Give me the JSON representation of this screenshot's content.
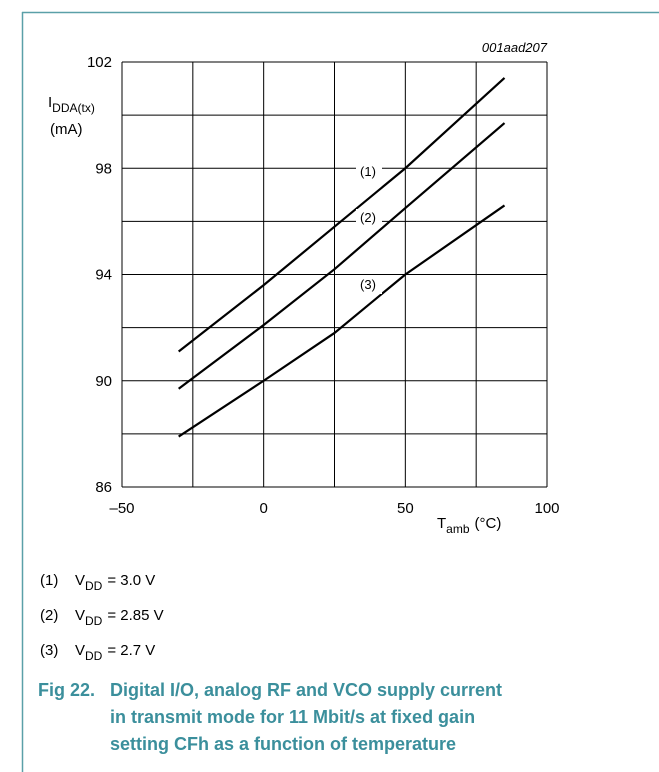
{
  "chart_data": {
    "type": "line",
    "annotation": "001aad207",
    "y_label": {
      "main": "I",
      "sub": "DDA(tx)",
      "unit": "(mA)"
    },
    "x_label": {
      "main": "T",
      "sub": "amb",
      "unit": "(°C)"
    },
    "x": [
      -30,
      0,
      25,
      50,
      85
    ],
    "series": [
      {
        "name": "(1)",
        "color": "#000000",
        "values": [
          91.1,
          93.6,
          95.8,
          98.0,
          101.4
        ]
      },
      {
        "name": "(2)",
        "color": "#000000",
        "values": [
          89.7,
          92.1,
          94.2,
          96.5,
          99.7
        ]
      },
      {
        "name": "(3)",
        "color": "#000000",
        "values": [
          87.9,
          90.0,
          91.8,
          94.0,
          96.6
        ]
      }
    ],
    "xlim": [
      -50,
      100
    ],
    "xticks": [
      {
        "value": -50,
        "label": "–50"
      },
      0,
      50,
      100
    ],
    "xgrid": [
      -50,
      -25,
      0,
      25,
      50,
      75,
      100
    ],
    "ylim": [
      86,
      102
    ],
    "yticks": [
      86,
      90,
      94,
      98,
      102
    ],
    "ygrid": [
      86,
      88,
      90,
      92,
      94,
      96,
      98,
      100,
      102
    ],
    "grid": true,
    "notes": [
      {
        "symbol": "V",
        "sub": "DD",
        "rest": "= 3.0 V"
      },
      {
        "symbol": "V",
        "sub": "DD",
        "rest": "= 2.85 V"
      },
      {
        "symbol": "V",
        "sub": "DD",
        "rest": "= 2.7 V"
      }
    ],
    "caption": {
      "number": "Fig 22.",
      "lines": [
        "Digital I/O, analog RF and VCO supply current",
        "in transmit mode for 11 Mbit/s at fixed gain",
        "setting CFh as a function of temperature"
      ]
    }
  }
}
